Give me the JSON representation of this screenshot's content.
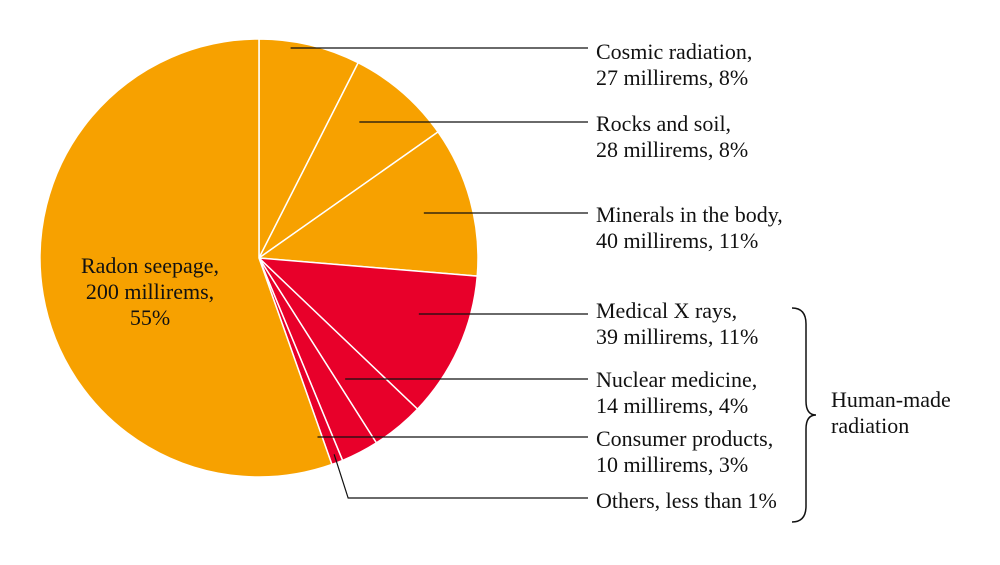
{
  "chart_data": {
    "type": "pie",
    "title": "",
    "slices": [
      {
        "label_lines": [
          "Cosmic radiation,",
          "27 millirems, 8%"
        ],
        "value": 27,
        "percent": "8%",
        "color": "#F7A100",
        "group": "natural"
      },
      {
        "label_lines": [
          "Rocks and soil,",
          "28 millirems, 8%"
        ],
        "value": 28,
        "percent": "8%",
        "color": "#F7A100",
        "group": "natural"
      },
      {
        "label_lines": [
          "Minerals in the body,",
          "40 millirems, 11%"
        ],
        "value": 40,
        "percent": "11%",
        "color": "#F7A100",
        "group": "natural"
      },
      {
        "label_lines": [
          "Medical X rays,",
          "39 millirems, 11%"
        ],
        "value": 39,
        "percent": "11%",
        "color": "#E8002A",
        "group": "human-made"
      },
      {
        "label_lines": [
          "Nuclear medicine,",
          "14 millirems, 4%"
        ],
        "value": 14,
        "percent": "4%",
        "color": "#E8002A",
        "group": "human-made"
      },
      {
        "label_lines": [
          "Consumer products,",
          "10 millirems, 3%"
        ],
        "value": 10,
        "percent": "3%",
        "color": "#E8002A",
        "group": "human-made"
      },
      {
        "label_lines": [
          "Others, less than 1%"
        ],
        "value": 3,
        "percent": "less than 1%",
        "color": "#E8002A",
        "group": "human-made"
      },
      {
        "label_lines": [
          "Radon seepage,",
          "200 millirems,",
          "55%"
        ],
        "value": 200,
        "percent": "55%",
        "color": "#F7A100",
        "group": "natural"
      }
    ],
    "group_label_lines": [
      "Human-made",
      "radiation"
    ],
    "start_angle_deg": 0,
    "direction": "clockwise"
  }
}
